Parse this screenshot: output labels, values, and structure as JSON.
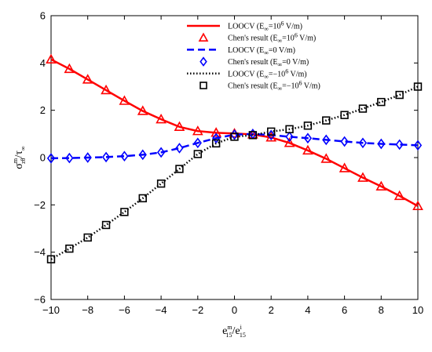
{
  "chart_data": {
    "type": "line",
    "xlabel": {
      "base": "e",
      "sup1": "m",
      "sub1": "15",
      "slash": "/e",
      "sup2": "i",
      "sub2": "15"
    },
    "ylabel": {
      "base": "σ",
      "sup": "m",
      "sub": "zθ",
      "slash": "/τ",
      "sub2": "∞"
    },
    "xlim": [
      -10,
      10
    ],
    "ylim": [
      -6,
      6
    ],
    "xticks": [
      "−10",
      "−8",
      "−6",
      "−4",
      "−2",
      "0",
      "2",
      "4",
      "6",
      "8",
      "10"
    ],
    "yticks": [
      "−6",
      "−4",
      "−2",
      "0",
      "2",
      "4",
      "6"
    ],
    "grid": false,
    "legend_position": "top-right",
    "x": [
      -10,
      -9,
      -8,
      -7,
      -6,
      -5,
      -4,
      -3,
      -2,
      -1,
      0,
      1,
      2,
      3,
      4,
      5,
      6,
      7,
      8,
      9,
      10
    ],
    "series": [
      {
        "name": "LOOCV (E∞=10^6 V/m)",
        "legend": {
          "pre": "LOOCV (E",
          "sub": "∞",
          "mid": "=10",
          "sup": "6",
          "post": " V/m)"
        },
        "style": "solid",
        "color": "#ff0000",
        "marker": "none",
        "values": [
          4.15,
          3.75,
          3.3,
          2.85,
          2.4,
          1.97,
          1.62,
          1.3,
          1.12,
          1.05,
          1.02,
          0.98,
          0.85,
          0.62,
          0.3,
          -0.05,
          -0.45,
          -0.85,
          -1.22,
          -1.62,
          -2.05
        ]
      },
      {
        "name": "Chen's result (E∞=10^6 V/m)",
        "legend": {
          "pre": "Chen's result (E",
          "sub": "∞",
          "mid": "=10",
          "sup": "6",
          "post": " V/m)"
        },
        "style": "none",
        "color": "#ff0000",
        "marker": "triangle",
        "values": [
          4.15,
          3.75,
          3.3,
          2.85,
          2.4,
          1.97,
          1.62,
          1.3,
          1.12,
          1.05,
          1.02,
          0.98,
          0.85,
          0.62,
          0.3,
          -0.05,
          -0.45,
          -0.85,
          -1.22,
          -1.62,
          -2.05
        ]
      },
      {
        "name": "LOOCV (E∞=0 V/m)",
        "legend": {
          "pre": "LOOCV (E",
          "sub": "∞",
          "mid": "=0 V/m)",
          "sup": "",
          "post": ""
        },
        "style": "dashed",
        "color": "#0000ff",
        "marker": "none",
        "values": [
          -0.03,
          -0.02,
          0.0,
          0.02,
          0.06,
          0.12,
          0.22,
          0.4,
          0.62,
          0.82,
          0.97,
          1.0,
          0.95,
          0.88,
          0.82,
          0.75,
          0.68,
          0.62,
          0.58,
          0.55,
          0.52
        ]
      },
      {
        "name": "Chen's result (E∞=0 V/m)",
        "legend": {
          "pre": "Chen's result (E",
          "sub": "∞",
          "mid": "=0 V/m)",
          "sup": "",
          "post": ""
        },
        "style": "none",
        "color": "#0000ff",
        "marker": "diamond",
        "values": [
          -0.03,
          -0.02,
          0.0,
          0.02,
          0.06,
          0.12,
          0.22,
          0.4,
          0.62,
          0.82,
          0.97,
          1.0,
          0.95,
          0.88,
          0.82,
          0.75,
          0.68,
          0.62,
          0.58,
          0.55,
          0.52
        ]
      },
      {
        "name": "LOOCV (E∞=−10^6 V/m)",
        "legend": {
          "pre": "LOOCV (E",
          "sub": "∞",
          "mid": "=−10",
          "sup": "6",
          "post": " V/m)"
        },
        "style": "dotted",
        "color": "#000000",
        "marker": "none",
        "values": [
          -4.3,
          -3.85,
          -3.38,
          -2.85,
          -2.3,
          -1.72,
          -1.1,
          -0.48,
          0.15,
          0.6,
          0.88,
          0.95,
          1.1,
          1.2,
          1.35,
          1.57,
          1.8,
          2.07,
          2.35,
          2.65,
          3.0
        ]
      },
      {
        "name": "Chen's result (E∞=−10^6 V/m)",
        "legend": {
          "pre": "Chen's result (E",
          "sub": "∞",
          "mid": "=−10",
          "sup": "6",
          "post": " V/m)"
        },
        "style": "none",
        "color": "#000000",
        "marker": "square",
        "values": [
          -4.3,
          -3.85,
          -3.38,
          -2.85,
          -2.3,
          -1.72,
          -1.1,
          -0.48,
          0.15,
          0.6,
          0.88,
          0.95,
          1.1,
          1.2,
          1.35,
          1.57,
          1.8,
          2.07,
          2.35,
          2.65,
          3.0
        ]
      }
    ]
  }
}
